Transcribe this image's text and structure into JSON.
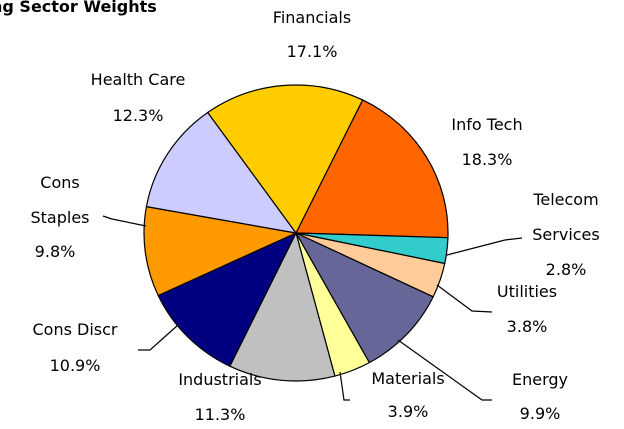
{
  "chart_data": {
    "type": "pie",
    "title": "ng Sector Weights",
    "categories": [
      "Info Tech",
      "Telecom Services",
      "Utilities",
      "Energy",
      "Materials",
      "Industrials",
      "Cons Discr",
      "Cons Staples",
      "Health Care",
      "Financials"
    ],
    "values": [
      18.3,
      2.8,
      3.8,
      9.9,
      3.9,
      11.3,
      10.9,
      9.8,
      12.3,
      17.1
    ],
    "value_labels": [
      "18.3%",
      "2.8%",
      "3.8%",
      "9.9%",
      "3.9%",
      "11.3%",
      "10.9%",
      "9.8%",
      "12.3%",
      "17.1%"
    ],
    "colors": [
      "#ff6600",
      "#33cccc",
      "#ffcc99",
      "#666699",
      "#ffff99",
      "#c0c0c0",
      "#000080",
      "#ff9900",
      "#ccccff",
      "#ffcc00"
    ]
  }
}
